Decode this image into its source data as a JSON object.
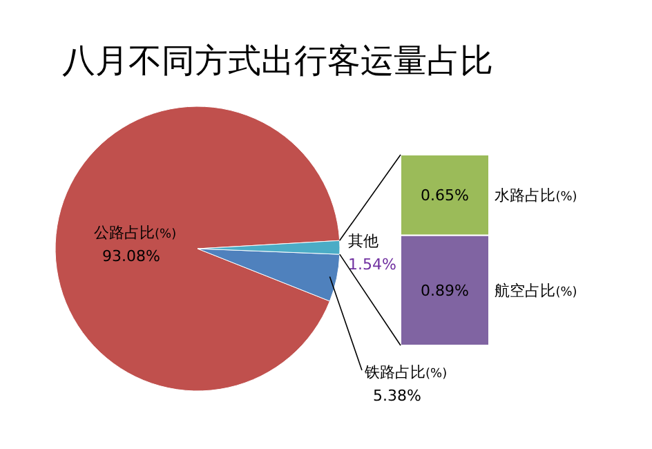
{
  "chart_data": [
    {
      "type": "pie",
      "title": "八月不同方式出行客运量占比",
      "categories": [
        "公路占比(%)",
        "铁路占比(%)",
        "其他"
      ],
      "values": [
        93.08,
        5.38,
        1.54
      ],
      "colors": [
        "#c0504d",
        "#4f81bd",
        "#4bacc6"
      ],
      "value_labels": [
        "93.08%",
        "5.38%",
        "1.54%"
      ]
    },
    {
      "type": "bar",
      "stacked": true,
      "categories": [
        null
      ],
      "series": [
        {
          "name": "航空占比(%)",
          "color": "#8064a2",
          "values": [
            0.89
          ],
          "value_labels": [
            "0.89%"
          ]
        },
        {
          "name": "水路占比(%)",
          "color": "#9bbb59",
          "values": [
            0.65
          ],
          "value_labels": [
            "0.65%"
          ]
        }
      ]
    }
  ]
}
